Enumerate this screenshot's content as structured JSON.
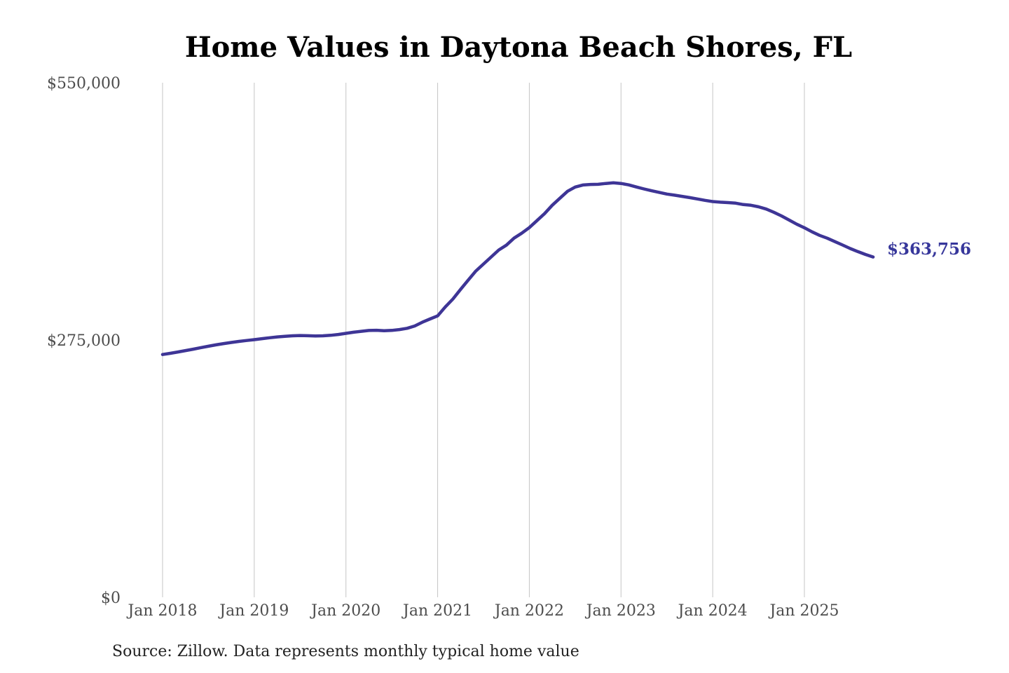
{
  "chart_data": {
    "type": "line",
    "title": "Home Values in Daytona Beach Shores, FL",
    "source_note": "Source: Zillow. Data represents monthly typical home value",
    "series_name": "Monthly typical home value",
    "line_color": "#3e3596",
    "grid_color": "#c5c5c5",
    "end_label": "$363,756",
    "end_label_color": "#37379b",
    "end_value": 363756,
    "ylim": [
      0,
      550000
    ],
    "x_start_month": "Jan 2018",
    "x_end_month": "Oct 2025",
    "yticks": [
      {
        "label": "$550,000",
        "value": 550000
      },
      {
        "label": "$275,000",
        "value": 275000
      },
      {
        "label": "$0",
        "value": 0
      }
    ],
    "xticks": [
      {
        "label": "Jan 2018",
        "month_index": 0
      },
      {
        "label": "Jan 2019",
        "month_index": 12
      },
      {
        "label": "Jan 2020",
        "month_index": 24
      },
      {
        "label": "Jan 2021",
        "month_index": 36
      },
      {
        "label": "Jan 2022",
        "month_index": 48
      },
      {
        "label": "Jan 2023",
        "month_index": 60
      },
      {
        "label": "Jan 2024",
        "month_index": 72
      },
      {
        "label": "Jan 2025",
        "month_index": 84
      }
    ],
    "values": [
      259500,
      260800,
      262200,
      263700,
      265200,
      266800,
      268300,
      269800,
      271200,
      272400,
      273500,
      274500,
      275400,
      276400,
      277400,
      278300,
      279000,
      279500,
      279800,
      279600,
      279300,
      279500,
      280000,
      280900,
      282100,
      283300,
      284300,
      285200,
      285400,
      285000,
      285300,
      286200,
      287500,
      290000,
      294000,
      297500,
      300800,
      310400,
      318800,
      329100,
      339000,
      348700,
      356200,
      363700,
      371200,
      376400,
      383900,
      389100,
      395100,
      402600,
      410100,
      419000,
      426500,
      434000,
      438500,
      440700,
      441300,
      441400,
      442300,
      443000,
      442300,
      440800,
      438600,
      436500,
      434500,
      432800,
      431000,
      429800,
      428500,
      427200,
      425800,
      424300,
      423000,
      422300,
      421900,
      421300,
      419800,
      419000,
      417400,
      415000,
      411500,
      407600,
      403200,
      398800,
      395000,
      390600,
      386800,
      383800,
      380100,
      376500,
      372800,
      369500,
      366400,
      363756
    ]
  }
}
